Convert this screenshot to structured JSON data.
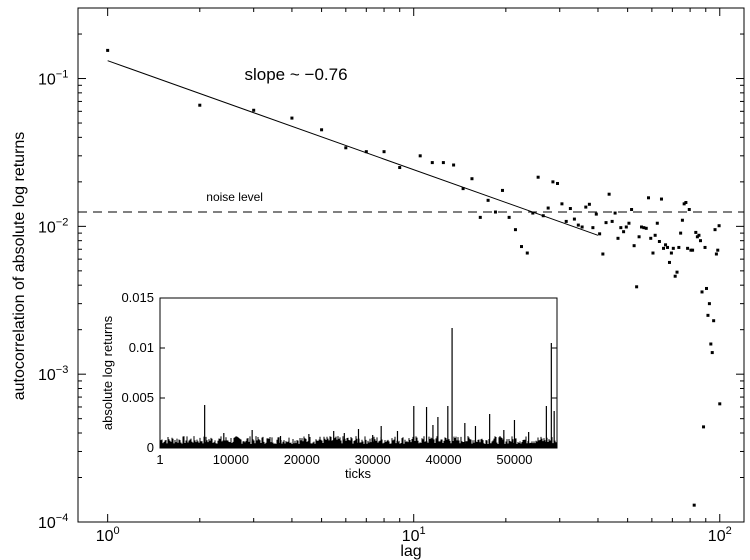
{
  "chart_data": [
    {
      "type": "scatter",
      "xscale": "log",
      "yscale": "log",
      "xlim": [
        0.8,
        120
      ],
      "ylim": [
        0.0001,
        0.3
      ],
      "xlabel": "lag",
      "ylabel": "autocorrelation of absolute log returns",
      "xticks": [
        {
          "value": 1,
          "base": "10",
          "exp": "0"
        },
        {
          "value": 10,
          "base": "10",
          "exp": "1"
        },
        {
          "value": 100,
          "base": "10",
          "exp": "2"
        }
      ],
      "yticks": [
        {
          "value": 0.0001,
          "base": "10",
          "exp": "−4"
        },
        {
          "value": 0.001,
          "base": "10",
          "exp": "−3"
        },
        {
          "value": 0.01,
          "base": "10",
          "exp": "−2"
        },
        {
          "value": 0.1,
          "base": "10",
          "exp": "−1"
        }
      ],
      "points": [
        [
          1,
          0.155
        ],
        [
          2,
          0.066
        ],
        [
          3,
          0.061
        ],
        [
          4,
          0.054
        ],
        [
          5,
          0.045
        ],
        [
          6,
          0.034
        ],
        [
          7,
          0.032
        ],
        [
          8,
          0.032
        ],
        [
          9,
          0.025
        ],
        [
          10.5,
          0.03
        ],
        [
          11.5,
          0.027
        ],
        [
          12.5,
          0.027
        ],
        [
          13.5,
          0.026
        ],
        [
          14.5,
          0.018
        ],
        [
          15.5,
          0.021
        ],
        [
          16.5,
          0.0115
        ],
        [
          17.5,
          0.015
        ],
        [
          18.5,
          0.0125
        ],
        [
          19.5,
          0.0175
        ],
        [
          20.5,
          0.0115
        ],
        [
          21.5,
          0.0095
        ],
        [
          22.5,
          0.0073
        ],
        [
          23.5,
          0.0066
        ],
        [
          24.5,
          0.0123
        ],
        [
          25.5,
          0.0215
        ],
        [
          26.5,
          0.0118
        ],
        [
          27.5,
          0.0133
        ],
        [
          28.5,
          0.02
        ],
        [
          29.5,
          0.0195
        ],
        [
          30.5,
          0.0142
        ],
        [
          31.5,
          0.0108
        ],
        [
          32.5,
          0.0132
        ],
        [
          33.5,
          0.0112
        ],
        [
          34.5,
          0.0102
        ],
        [
          35.5,
          0.0099
        ],
        [
          36.5,
          0.0135
        ],
        [
          37.5,
          0.0141
        ],
        [
          38.5,
          0.0098
        ],
        [
          39.5,
          0.0121
        ],
        [
          40.5,
          0.0089
        ],
        [
          41.5,
          0.0065
        ],
        [
          42.5,
          0.0106
        ],
        [
          43.5,
          0.0165
        ],
        [
          44.5,
          0.0108
        ],
        [
          45.5,
          0.0123
        ],
        [
          46.5,
          0.0083
        ],
        [
          47.5,
          0.0098
        ],
        [
          48.5,
          0.0092
        ],
        [
          49.5,
          0.0099
        ],
        [
          50.5,
          0.0105
        ],
        [
          51.5,
          0.013
        ],
        [
          52.5,
          0.0074
        ],
        [
          53.5,
          0.0039
        ],
        [
          54.5,
          0.0085
        ],
        [
          55.5,
          0.0099
        ],
        [
          56.5,
          0.0098
        ],
        [
          57.5,
          0.0097
        ],
        [
          58.5,
          0.0156
        ],
        [
          59.5,
          0.0083
        ],
        [
          60.5,
          0.0066
        ],
        [
          61.5,
          0.0087
        ],
        [
          62.5,
          0.0105
        ],
        [
          63.5,
          0.0079
        ],
        [
          64.5,
          0.0153
        ],
        [
          65.5,
          0.0071
        ],
        [
          66.5,
          0.0075
        ],
        [
          67.5,
          0.0072
        ],
        [
          68.5,
          0.0057
        ],
        [
          69.5,
          0.0066
        ],
        [
          70.5,
          0.0071
        ],
        [
          71.5,
          0.0046
        ],
        [
          72.5,
          0.0049
        ],
        [
          73.5,
          0.0072
        ],
        [
          74.5,
          0.009
        ],
        [
          75.5,
          0.011
        ],
        [
          76.5,
          0.0142
        ],
        [
          77.5,
          0.0145
        ],
        [
          78.5,
          0.0071
        ],
        [
          79.5,
          0.013
        ],
        [
          80.5,
          0.0069
        ],
        [
          81.5,
          0.0069
        ],
        [
          82.5,
          0.00013
        ],
        [
          83.5,
          0.0091
        ],
        [
          84.5,
          0.0085
        ],
        [
          85.5,
          0.0087
        ],
        [
          86.5,
          0.008
        ],
        [
          87.5,
          0.0036
        ],
        [
          88.5,
          0.00044
        ],
        [
          89.5,
          0.0072
        ],
        [
          90.5,
          0.0038
        ],
        [
          91.5,
          0.0025
        ],
        [
          92.5,
          0.003
        ],
        [
          93.5,
          0.0016
        ],
        [
          94.5,
          0.0014
        ],
        [
          95.5,
          0.0023
        ],
        [
          96.5,
          0.0095
        ],
        [
          97.5,
          0.0065
        ],
        [
          98.5,
          0.0069
        ],
        [
          99.5,
          0.0101
        ],
        [
          100,
          0.00063
        ]
      ],
      "fit_line": {
        "x": [
          1,
          40
        ],
        "y": [
          0.132,
          0.0087
        ]
      },
      "fit_label": "slope ~ −0.76",
      "fit_label_at": [
        2.8,
        0.098
      ],
      "noise_level": 0.0125,
      "noise_label": "noise level",
      "noise_label_at": [
        2.1,
        0.0148
      ]
    },
    {
      "type": "line",
      "xlim": [
        1,
        56000
      ],
      "ylim": [
        0,
        0.015
      ],
      "xlabel": "ticks",
      "ylabel": "absolute log returns",
      "xticks": [
        "1",
        "10000",
        "20000",
        "30000",
        "40000",
        "50000"
      ],
      "xtick_values": [
        1,
        10000,
        20000,
        30000,
        40000,
        50000
      ],
      "yticks": [
        "0",
        "0.005",
        "0.01",
        "0.015"
      ],
      "ytick_values": [
        0,
        0.005,
        0.01,
        0.015
      ],
      "baseline_max": 0.0012,
      "spikes": [
        [
          6300,
          0.0043
        ],
        [
          9000,
          0.0015
        ],
        [
          13000,
          0.0018
        ],
        [
          17000,
          0.0012
        ],
        [
          21000,
          0.0014
        ],
        [
          24500,
          0.0017
        ],
        [
          26000,
          0.0015
        ],
        [
          28000,
          0.0019
        ],
        [
          30000,
          0.0013
        ],
        [
          31200,
          0.0022
        ],
        [
          33500,
          0.0017
        ],
        [
          35800,
          0.0042
        ],
        [
          37600,
          0.0041
        ],
        [
          38500,
          0.0023
        ],
        [
          39200,
          0.0031
        ],
        [
          40600,
          0.0042
        ],
        [
          41200,
          0.012
        ],
        [
          43000,
          0.0025
        ],
        [
          44500,
          0.0022
        ],
        [
          46500,
          0.0034
        ],
        [
          48500,
          0.0018
        ],
        [
          50000,
          0.0028
        ],
        [
          52000,
          0.0016
        ],
        [
          54500,
          0.0042
        ],
        [
          55200,
          0.0105
        ],
        [
          55600,
          0.0037
        ]
      ]
    }
  ]
}
